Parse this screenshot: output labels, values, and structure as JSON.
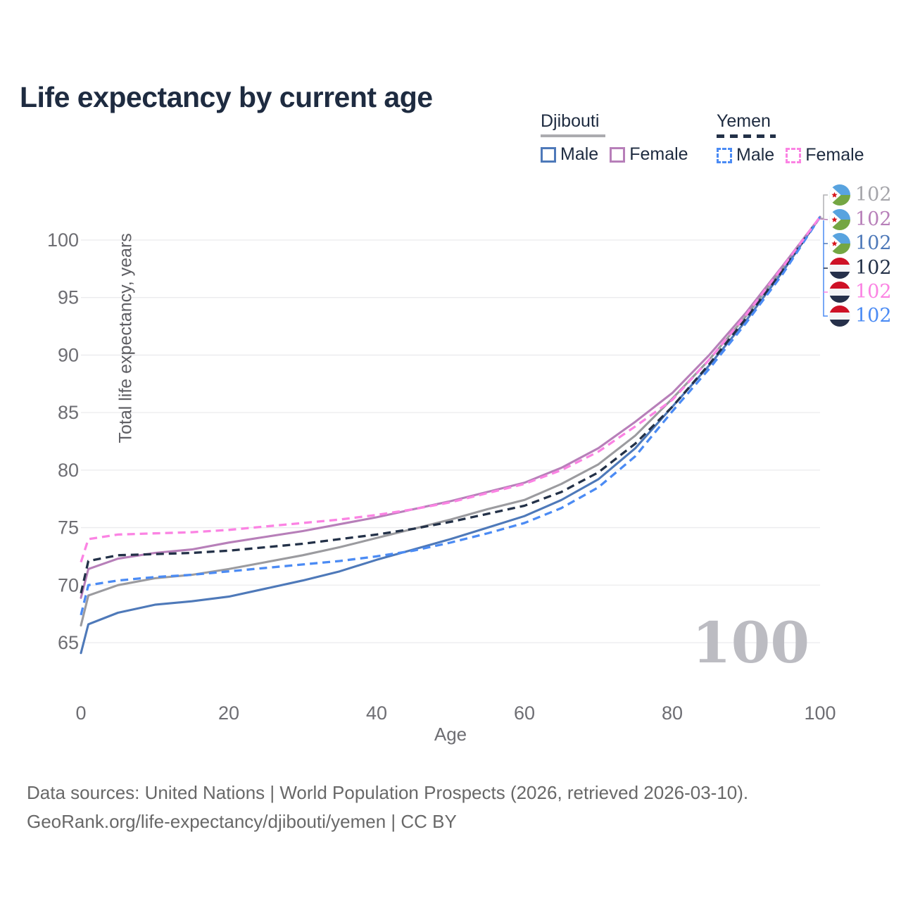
{
  "title": "Life expectancy by current age",
  "legend": {
    "groups": [
      {
        "country": "Djibouti",
        "line_color": "#ababaf",
        "line_style": "solid",
        "items": [
          {
            "label": "Male",
            "color": "#4e79b9",
            "style": "solid"
          },
          {
            "label": "Female",
            "color": "#b77fb9",
            "style": "solid"
          }
        ]
      },
      {
        "country": "Yemen",
        "line_color": "#233148",
        "line_style": "dashed",
        "items": [
          {
            "label": "Male",
            "color": "#4b8bf4",
            "style": "dashed"
          },
          {
            "label": "Female",
            "color": "#fb83e3",
            "style": "dashed"
          }
        ]
      }
    ]
  },
  "chart_data": {
    "type": "line",
    "title": "Life expectancy by current age",
    "xlabel": "Age",
    "ylabel": "Total life expectancy, years",
    "xlim": [
      0,
      100
    ],
    "ylim": [
      63,
      103
    ],
    "grid": true,
    "x_ticks": [
      0,
      20,
      40,
      60,
      80,
      100
    ],
    "y_ticks": [
      65,
      70,
      75,
      80,
      85,
      90,
      95,
      100
    ],
    "x": [
      0,
      1,
      5,
      10,
      15,
      20,
      25,
      30,
      35,
      40,
      45,
      50,
      55,
      60,
      65,
      70,
      75,
      80,
      85,
      90,
      95,
      100
    ],
    "series": [
      {
        "name": "Djibouti Both sexes",
        "country": "Djibouti",
        "sex": "Both",
        "color": "#9b9b9f",
        "dash": "solid",
        "values": [
          66.5,
          69.1,
          70.0,
          70.6,
          70.9,
          71.4,
          72.0,
          72.6,
          73.3,
          74.1,
          74.9,
          75.7,
          76.6,
          77.4,
          78.8,
          80.5,
          83.0,
          86.2,
          89.6,
          93.4,
          97.6,
          102
        ]
      },
      {
        "name": "Djibouti Male",
        "country": "Djibouti",
        "sex": "Male",
        "color": "#4e79b9",
        "dash": "solid",
        "values": [
          64.1,
          66.6,
          67.6,
          68.3,
          68.6,
          69.0,
          69.7,
          70.4,
          71.2,
          72.2,
          73.1,
          74.0,
          75.0,
          76.0,
          77.4,
          79.2,
          81.9,
          85.5,
          89.1,
          93.0,
          97.3,
          102
        ]
      },
      {
        "name": "Djibouti Female",
        "country": "Djibouti",
        "sex": "Female",
        "color": "#b77fb9",
        "dash": "solid",
        "values": [
          68.9,
          71.4,
          72.3,
          72.8,
          73.1,
          73.7,
          74.2,
          74.7,
          75.3,
          75.9,
          76.6,
          77.3,
          78.1,
          78.9,
          80.2,
          81.9,
          84.2,
          86.7,
          90.0,
          93.7,
          97.8,
          102
        ]
      },
      {
        "name": "Yemen Both sexes",
        "country": "Yemen",
        "sex": "Both",
        "color": "#233148",
        "dash": "dashed",
        "values": [
          69.3,
          72.1,
          72.6,
          72.7,
          72.8,
          73.0,
          73.3,
          73.6,
          74.0,
          74.4,
          74.9,
          75.5,
          76.2,
          76.9,
          78.1,
          79.8,
          82.3,
          85.5,
          89.2,
          93.2,
          97.4,
          102
        ]
      },
      {
        "name": "Yemen Male",
        "country": "Yemen",
        "sex": "Male",
        "color": "#4b8bf4",
        "dash": "dashed",
        "values": [
          67.4,
          70.0,
          70.4,
          70.7,
          70.9,
          71.2,
          71.5,
          71.8,
          72.1,
          72.5,
          73.0,
          73.7,
          74.5,
          75.4,
          76.7,
          78.5,
          81.2,
          85.1,
          88.8,
          92.8,
          97.1,
          102
        ]
      },
      {
        "name": "Yemen Female",
        "country": "Yemen",
        "sex": "Female",
        "color": "#fb83e3",
        "dash": "dashed",
        "values": [
          72.0,
          74.0,
          74.4,
          74.5,
          74.6,
          74.8,
          75.1,
          75.4,
          75.7,
          76.1,
          76.6,
          77.2,
          78.0,
          78.8,
          80.0,
          81.6,
          83.8,
          86.1,
          89.6,
          93.5,
          97.7,
          102
        ]
      }
    ],
    "end_labels": [
      {
        "flag": "djibouti",
        "value": "102",
        "color": "#a5a5aa"
      },
      {
        "flag": "djibouti",
        "value": "102",
        "color": "#b77fb9"
      },
      {
        "flag": "djibouti",
        "value": "102",
        "color": "#4e79b9"
      },
      {
        "flag": "yemen",
        "value": "102",
        "color": "#233148"
      },
      {
        "flag": "yemen",
        "value": "102",
        "color": "#fb83e3"
      },
      {
        "flag": "yemen",
        "value": "102",
        "color": "#4b8bf4"
      }
    ],
    "watermark": "100",
    "legend_position": "top-right"
  },
  "flag_colors": {
    "djibouti": {
      "blue": "#58a3df",
      "green": "#74a643",
      "white": "#ffffff",
      "star": "#d7141a"
    },
    "yemen": {
      "red": "#ce1126",
      "white": "#f4f4f6",
      "black": "#26304a"
    }
  },
  "footer": {
    "line1": "Data sources: United Nations | World Population Prospects (2026, retrieved 2026-03-10).",
    "line2": "GeoRank.org/life-expectancy/djibouti/yemen | CC BY"
  }
}
